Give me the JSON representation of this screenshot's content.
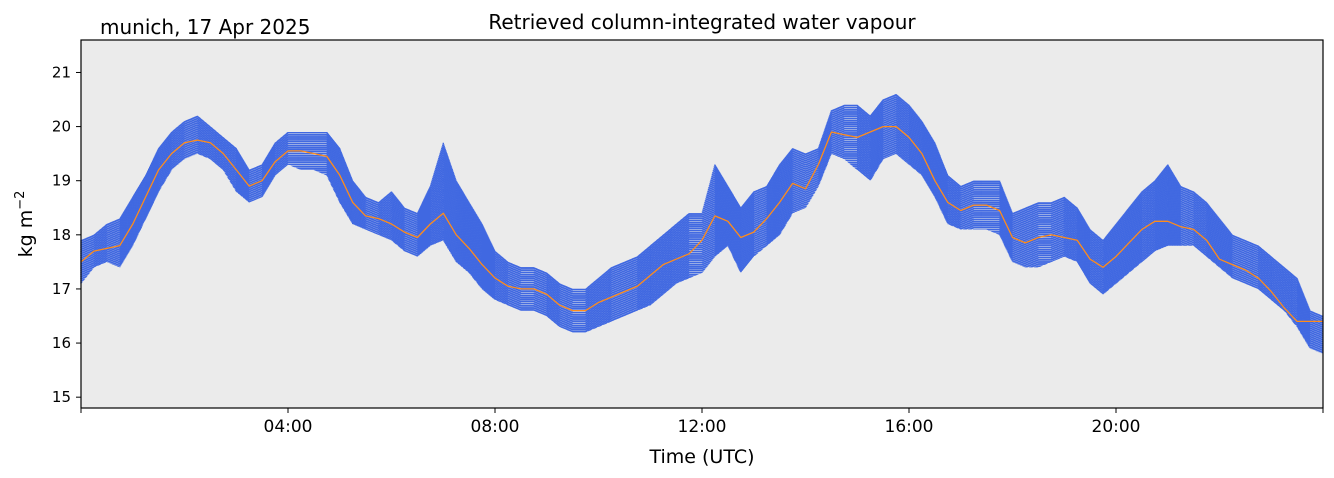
{
  "chart_data": {
    "type": "scatter",
    "title": "Retrieved column-integrated water vapour",
    "subtitle": "munich, 17 Apr 2025",
    "xlabel": "Time (UTC)",
    "ylabel": "kg m",
    "ylabel_superscript": "−2",
    "xlim": [
      0,
      24
    ],
    "ylim": [
      14.8,
      21.6
    ],
    "yticks": [
      15,
      16,
      17,
      18,
      19,
      20,
      21
    ],
    "xticks": [
      {
        "value": 4,
        "label": "04:00"
      },
      {
        "value": 8,
        "label": "08:00"
      },
      {
        "value": 12,
        "label": "12:00"
      },
      {
        "value": 16,
        "label": "16:00"
      },
      {
        "value": 20,
        "label": "20:00"
      }
    ],
    "grid": false,
    "series": [
      {
        "kind": "scatter",
        "color": "#4169e1",
        "x": [
          0.0,
          0.25,
          0.5,
          0.75,
          1.0,
          1.25,
          1.5,
          1.75,
          2.0,
          2.25,
          2.5,
          2.75,
          3.0,
          3.25,
          3.5,
          3.75,
          4.0,
          4.25,
          4.5,
          4.75,
          5.0,
          5.25,
          5.5,
          5.75,
          6.0,
          6.25,
          6.5,
          6.75,
          7.0,
          7.25,
          7.5,
          7.75,
          8.0,
          8.25,
          8.5,
          8.75,
          9.0,
          9.25,
          9.5,
          9.75,
          10.0,
          10.25,
          10.5,
          10.75,
          11.0,
          11.25,
          11.5,
          11.75,
          12.0,
          12.25,
          12.5,
          12.75,
          13.0,
          13.25,
          13.5,
          13.75,
          14.0,
          14.25,
          14.5,
          14.75,
          15.0,
          15.25,
          15.5,
          15.75,
          16.0,
          16.25,
          16.5,
          16.75,
          17.0,
          17.25,
          17.5,
          17.75,
          18.0,
          18.25,
          18.5,
          18.75,
          19.0,
          19.25,
          19.5,
          19.75,
          20.0,
          20.25,
          20.5,
          20.75,
          21.0,
          21.25,
          21.5,
          21.75,
          22.0,
          22.25,
          22.5,
          22.75,
          23.0,
          23.25,
          23.5,
          23.75,
          24.0
        ],
        "y_low": [
          17.1,
          17.4,
          17.5,
          17.4,
          17.8,
          18.3,
          18.8,
          19.2,
          19.4,
          19.5,
          19.4,
          19.2,
          18.8,
          18.6,
          18.7,
          19.1,
          19.3,
          19.2,
          19.2,
          19.1,
          18.6,
          18.2,
          18.1,
          18.0,
          17.9,
          17.7,
          17.6,
          17.8,
          17.9,
          17.5,
          17.3,
          17.0,
          16.8,
          16.7,
          16.6,
          16.6,
          16.5,
          16.3,
          16.2,
          16.2,
          16.3,
          16.4,
          16.5,
          16.6,
          16.7,
          16.9,
          17.1,
          17.2,
          17.3,
          17.6,
          17.8,
          17.3,
          17.6,
          17.8,
          18.0,
          18.4,
          18.5,
          18.9,
          19.5,
          19.4,
          19.2,
          19.0,
          19.4,
          19.5,
          19.3,
          19.1,
          18.7,
          18.2,
          18.1,
          18.1,
          18.1,
          18.0,
          17.5,
          17.4,
          17.4,
          17.5,
          17.6,
          17.5,
          17.1,
          16.9,
          17.1,
          17.3,
          17.5,
          17.7,
          17.8,
          17.8,
          17.8,
          17.6,
          17.4,
          17.2,
          17.1,
          17.0,
          16.8,
          16.6,
          16.3,
          15.9,
          15.8
        ],
        "y_high": [
          17.9,
          18.0,
          18.2,
          18.3,
          18.7,
          19.1,
          19.6,
          19.9,
          20.1,
          20.2,
          20.0,
          19.8,
          19.6,
          19.2,
          19.3,
          19.7,
          19.9,
          19.9,
          19.9,
          19.9,
          19.6,
          19.0,
          18.7,
          18.6,
          18.8,
          18.5,
          18.4,
          18.9,
          19.7,
          19.0,
          18.6,
          18.2,
          17.7,
          17.5,
          17.4,
          17.4,
          17.3,
          17.1,
          17.0,
          17.0,
          17.2,
          17.4,
          17.5,
          17.6,
          17.8,
          18.0,
          18.2,
          18.4,
          18.4,
          19.3,
          18.9,
          18.5,
          18.8,
          18.9,
          19.3,
          19.6,
          19.5,
          19.6,
          20.3,
          20.4,
          20.4,
          20.2,
          20.5,
          20.6,
          20.4,
          20.1,
          19.7,
          19.1,
          18.9,
          19.0,
          19.0,
          19.0,
          18.4,
          18.5,
          18.6,
          18.6,
          18.7,
          18.5,
          18.1,
          17.9,
          18.2,
          18.5,
          18.8,
          19.0,
          19.3,
          18.9,
          18.8,
          18.6,
          18.3,
          18.0,
          17.9,
          17.8,
          17.6,
          17.4,
          17.2,
          16.6,
          16.5
        ]
      },
      {
        "kind": "line",
        "color": "#ff8c1a",
        "x": [
          0.0,
          0.25,
          0.5,
          0.75,
          1.0,
          1.25,
          1.5,
          1.75,
          2.0,
          2.25,
          2.5,
          2.75,
          3.0,
          3.25,
          3.5,
          3.75,
          4.0,
          4.25,
          4.5,
          4.75,
          5.0,
          5.25,
          5.5,
          5.75,
          6.0,
          6.25,
          6.5,
          6.75,
          7.0,
          7.25,
          7.5,
          7.75,
          8.0,
          8.25,
          8.5,
          8.75,
          9.0,
          9.25,
          9.5,
          9.75,
          10.0,
          10.25,
          10.5,
          10.75,
          11.0,
          11.25,
          11.5,
          11.75,
          12.0,
          12.25,
          12.5,
          12.75,
          13.0,
          13.25,
          13.5,
          13.75,
          14.0,
          14.25,
          14.5,
          14.75,
          15.0,
          15.25,
          15.5,
          15.75,
          16.0,
          16.25,
          16.5,
          16.75,
          17.0,
          17.25,
          17.5,
          17.75,
          18.0,
          18.25,
          18.5,
          18.75,
          19.0,
          19.25,
          19.5,
          19.75,
          20.0,
          20.25,
          20.5,
          20.75,
          21.0,
          21.25,
          21.5,
          21.75,
          22.0,
          22.25,
          22.5,
          22.75,
          23.0,
          23.25,
          23.5,
          23.75,
          24.0
        ],
        "y": [
          17.5,
          17.7,
          17.75,
          17.8,
          18.2,
          18.7,
          19.2,
          19.5,
          19.7,
          19.75,
          19.7,
          19.5,
          19.2,
          18.9,
          19.0,
          19.35,
          19.55,
          19.55,
          19.5,
          19.45,
          19.1,
          18.6,
          18.35,
          18.3,
          18.2,
          18.05,
          17.95,
          18.2,
          18.4,
          18.0,
          17.75,
          17.45,
          17.2,
          17.05,
          17.0,
          17.0,
          16.9,
          16.7,
          16.6,
          16.6,
          16.75,
          16.85,
          16.95,
          17.05,
          17.25,
          17.45,
          17.55,
          17.65,
          17.9,
          18.35,
          18.25,
          17.95,
          18.05,
          18.3,
          18.6,
          18.95,
          18.85,
          19.3,
          19.9,
          19.85,
          19.8,
          19.9,
          20.0,
          20.0,
          19.8,
          19.5,
          19.0,
          18.6,
          18.45,
          18.55,
          18.55,
          18.45,
          17.95,
          17.85,
          17.95,
          18.0,
          17.95,
          17.9,
          17.55,
          17.4,
          17.6,
          17.85,
          18.1,
          18.25,
          18.25,
          18.15,
          18.1,
          17.9,
          17.55,
          17.45,
          17.35,
          17.2,
          16.95,
          16.65,
          16.4,
          16.4,
          16.4
        ]
      }
    ]
  }
}
